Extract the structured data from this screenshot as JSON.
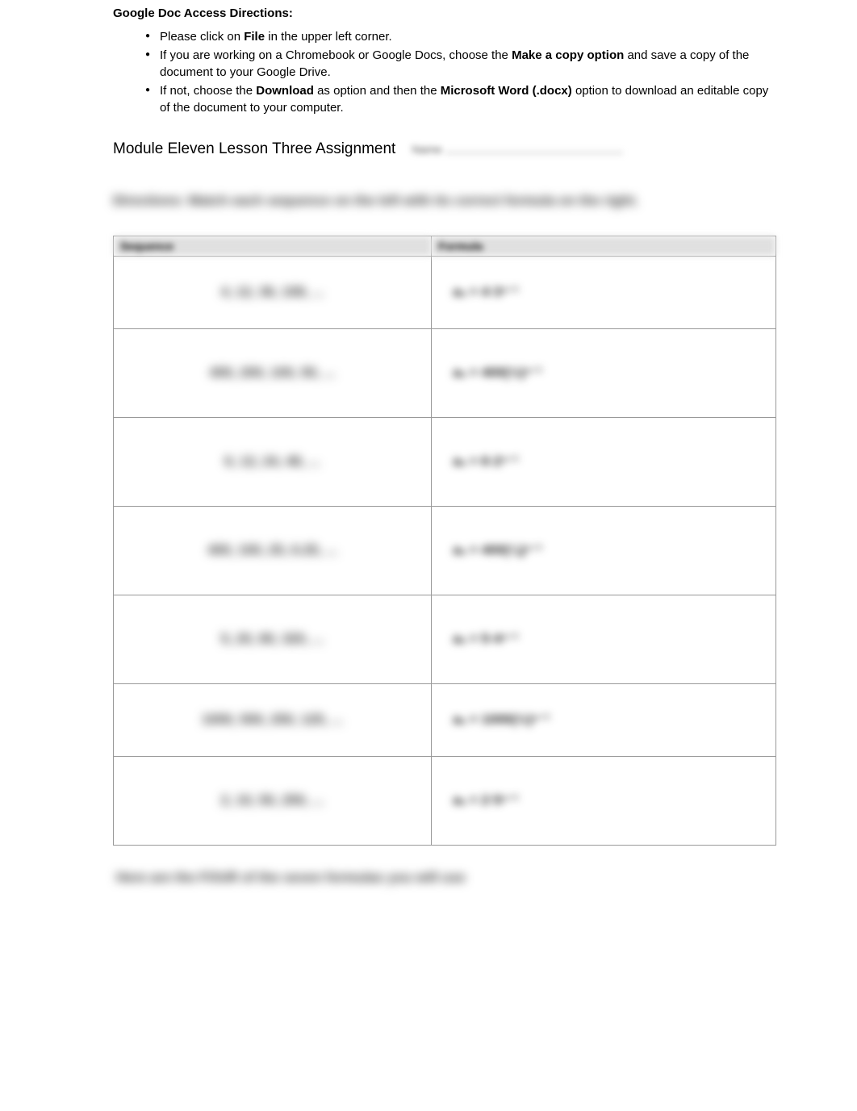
{
  "access": {
    "title": "Google Doc Access Directions:",
    "items": [
      {
        "pre": "Please click on ",
        "bold1": "File",
        "mid": " in the upper left corner.",
        "bold2": "",
        "post": ""
      },
      {
        "pre": "If you are working on a Chromebook or Google Docs, choose the ",
        "bold1": "Make a copy option",
        "mid": " and save a copy of the document to your Google Drive.",
        "bold2": "",
        "post": ""
      },
      {
        "pre": "If not, choose the ",
        "bold1": "Download",
        "mid": " as option and then the ",
        "bold2": "Microsoft Word (.docx)",
        "post": " option to download an editable copy of the document to your computer."
      }
    ]
  },
  "assignment_title": "Module Eleven Lesson Three Assignment",
  "name_label": "Name",
  "directions": "Directions: Match each sequence on the left with its correct formula on the right.",
  "table": {
    "header_left": "Sequence",
    "header_right": "Formula",
    "rows": [
      {
        "seq": "4, 12, 36, 108, ...",
        "formula": "aₙ = 4·3ⁿ⁻¹"
      },
      {
        "seq": "400, 200, 100, 50, ...",
        "formula": "aₙ = 400(½)ⁿ⁻¹"
      },
      {
        "seq": "6, 12, 24, 48, ...",
        "formula": "aₙ = 6·2ⁿ⁻¹"
      },
      {
        "seq": "400, 100, 25, 6.25, ...",
        "formula": "aₙ = 400(¼)ⁿ⁻¹"
      },
      {
        "seq": "5, 20, 80, 320, ...",
        "formula": "aₙ = 5·4ⁿ⁻¹"
      },
      {
        "seq": "1000, 500, 250, 125, ...",
        "formula": "aₙ = 1000(½)ⁿ⁻¹"
      },
      {
        "seq": "2, 10, 50, 250, ...",
        "formula": "aₙ = 2·5ⁿ⁻¹"
      }
    ]
  },
  "footer_note": "Here are the FOUR of the seven formulas you will use",
  "colors": {
    "background": "#ffffff",
    "text": "#000000",
    "blur_text": "#333333",
    "table_border": "#999999",
    "table_header_bg": "#e0e0e0"
  }
}
